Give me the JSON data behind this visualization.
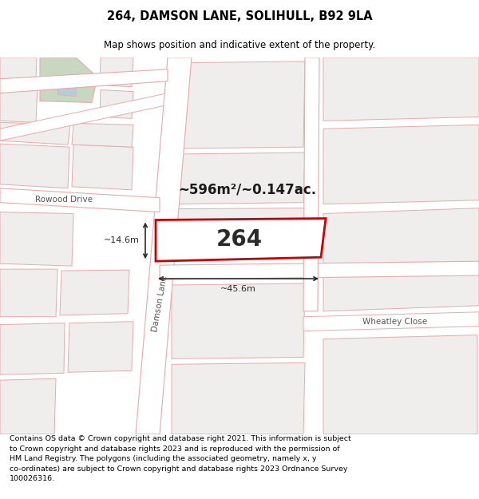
{
  "title": "264, DAMSON LANE, SOLIHULL, B92 9LA",
  "subtitle": "Map shows position and indicative extent of the property.",
  "footer_text": "Contains OS data © Crown copyright and database right 2021. This information is subject\nto Crown copyright and database rights 2023 and is reproduced with the permission of\nHM Land Registry. The polygons (including the associated geometry, namely x, y\nco-ordinates) are subject to Crown copyright and database rights 2023 Ordnance Survey\n100026316.",
  "map_bg": "#f0eded",
  "road_fill": "#ffffff",
  "road_stroke": "#e8aaaa",
  "plot_fill": "#ffffff",
  "plot_stroke": "#cc0000",
  "green_fill": "#c8d8c0",
  "blue_fill": "#b8ccd8",
  "label_264": "264",
  "area_label": "~596m²/~0.147ac.",
  "dim_width": "~45.6m",
  "dim_height": "~14.6m",
  "street_damson": "Damson Lane",
  "street_rowood": "Rowood Drive",
  "street_wheatley": "Wheatley Close",
  "fig_width": 6.0,
  "fig_height": 6.25,
  "dpi": 100
}
